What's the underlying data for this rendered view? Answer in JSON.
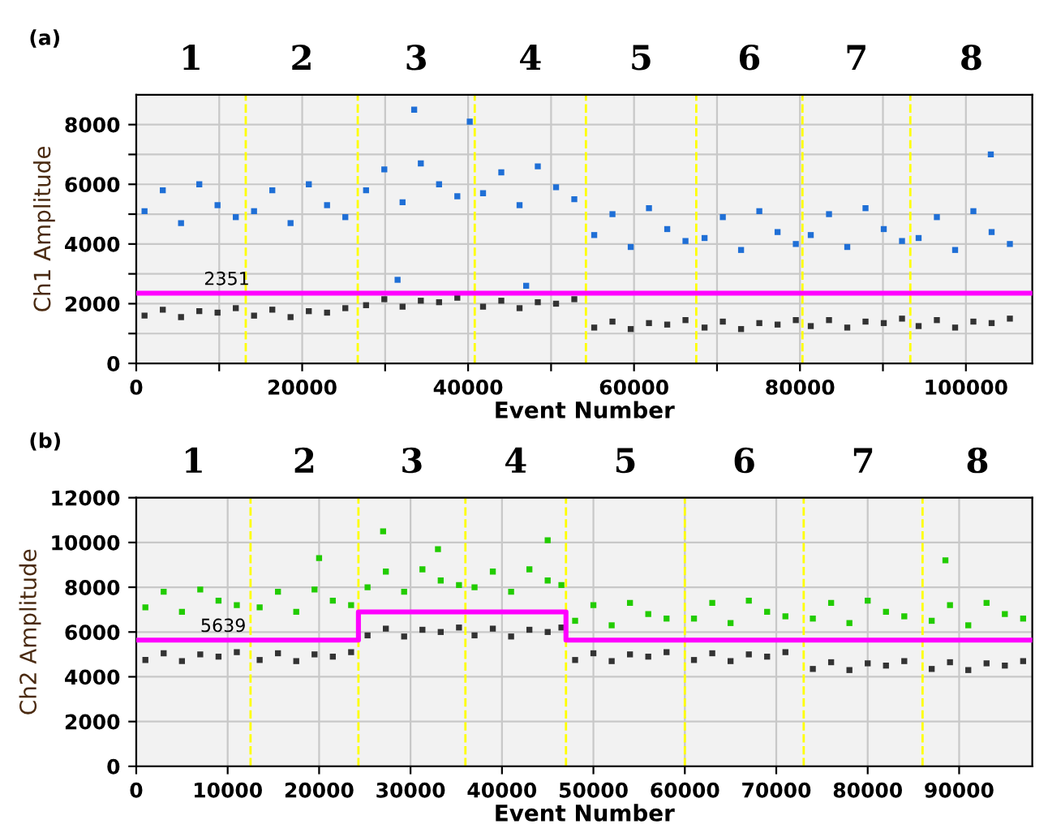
{
  "chart_data": [
    {
      "type": "scatter",
      "title": "(a)",
      "xlabel": "Event Number",
      "ylabel": "Ch1 Amplitude",
      "xlim": [
        0,
        108000
      ],
      "ylim": [
        0,
        9000
      ],
      "xticks": [
        0,
        {
          "value": 10000,
          "label": null
        },
        20000,
        {
          "value": 30000,
          "label": null
        },
        40000,
        {
          "value": 50000,
          "label": null
        },
        60000,
        {
          "value": 70000,
          "label": null
        },
        80000,
        {
          "value": 90000,
          "label": null
        },
        100000
      ],
      "yticks": [
        0,
        {
          "value": 1000,
          "label": null
        },
        2000,
        {
          "value": 3000,
          "label": null
        },
        4000,
        {
          "value": 5000,
          "label": null
        },
        6000,
        {
          "value": 7000,
          "label": null
        },
        8000
      ],
      "annotations": [
        "1",
        "2",
        "3",
        "4",
        "5",
        "6",
        "7",
        "8"
      ],
      "grid": true,
      "marker": "square",
      "series": [
        {
          "color": "#1f6fd6",
          "x": [
            1000,
            3200,
            5400,
            7600,
            9800,
            12000,
            14200,
            16400,
            18600,
            20800,
            23000,
            25200,
            27700,
            29900,
            32100,
            34300,
            36500,
            38700,
            41800,
            44000,
            46200,
            48400,
            50600,
            52800,
            55200,
            57400,
            59600,
            61800,
            64000,
            66200,
            68500,
            70700,
            72900,
            75100,
            77300,
            79500,
            81300,
            83500,
            85700,
            87900,
            90100,
            92300,
            94300,
            96500,
            98700,
            100900,
            103100,
            105300,
            33500,
            40200,
            103000,
            31500,
            47000
          ],
          "values": [
            5100,
            5800,
            4700,
            6000,
            5300,
            4900,
            5100,
            5800,
            4700,
            6000,
            5300,
            4900,
            5800,
            6500,
            5400,
            6700,
            6000,
            5600,
            5700,
            6400,
            5300,
            6600,
            5900,
            5500,
            4300,
            5000,
            3900,
            5200,
            4500,
            4100,
            4200,
            4900,
            3800,
            5100,
            4400,
            4000,
            4300,
            5000,
            3900,
            5200,
            4500,
            4100,
            4200,
            4900,
            3800,
            5100,
            4400,
            4000,
            8500,
            8100,
            7000,
            2800,
            2600
          ]
        },
        {
          "color": "#333333",
          "x": [
            1000,
            3200,
            5400,
            7600,
            9800,
            12000,
            14200,
            16400,
            18600,
            20800,
            23000,
            25200,
            27700,
            29900,
            32100,
            34300,
            36500,
            38700,
            41800,
            44000,
            46200,
            48400,
            50600,
            52800,
            55200,
            57400,
            59600,
            61800,
            64000,
            66200,
            68500,
            70700,
            72900,
            75100,
            77300,
            79500,
            81300,
            83500,
            85700,
            87900,
            90100,
            92300,
            94300,
            96500,
            98700,
            100900,
            103100,
            105300
          ],
          "values": [
            1600,
            1800,
            1550,
            1750,
            1700,
            1850,
            1600,
            1800,
            1550,
            1750,
            1700,
            1850,
            1950,
            2150,
            1900,
            2100,
            2050,
            2200,
            1900,
            2100,
            1850,
            2050,
            2000,
            2150,
            1200,
            1400,
            1150,
            1350,
            1300,
            1450,
            1200,
            1400,
            1150,
            1350,
            1300,
            1450,
            1250,
            1450,
            1200,
            1400,
            1350,
            1500,
            1250,
            1450,
            1200,
            1400,
            1350,
            1500
          ]
        }
      ],
      "ref_lines": [
        {
          "axis": "y",
          "value": 2351,
          "label": "2351",
          "color": "#ff00ff",
          "line_style": "solid"
        },
        {
          "axis": "x",
          "value": 13200,
          "label": null,
          "color": "#ffff00",
          "line_style": "dashed"
        },
        {
          "axis": "x",
          "value": 26700,
          "label": null,
          "color": "#ffff00",
          "line_style": "dashed"
        },
        {
          "axis": "x",
          "value": 40800,
          "label": null,
          "color": "#ffff00",
          "line_style": "dashed"
        },
        {
          "axis": "x",
          "value": 54200,
          "label": null,
          "color": "#ffff00",
          "line_style": "dashed"
        },
        {
          "axis": "x",
          "value": 67500,
          "label": null,
          "color": "#ffff00",
          "line_style": "dashed"
        },
        {
          "axis": "x",
          "value": 80300,
          "label": null,
          "color": "#ffff00",
          "line_style": "dashed"
        },
        {
          "axis": "x",
          "value": 93300,
          "label": null,
          "color": "#ffff00",
          "line_style": "dashed"
        }
      ]
    },
    {
      "type": "scatter",
      "title": "(b)",
      "xlabel": "Event Number",
      "ylabel": "Ch2 Amplitude",
      "xlim": [
        0,
        98000
      ],
      "ylim": [
        0,
        12000
      ],
      "xticks": [
        0,
        10000,
        20000,
        30000,
        40000,
        50000,
        60000,
        70000,
        80000,
        90000
      ],
      "yticks": [
        0,
        2000,
        4000,
        6000,
        8000,
        10000,
        12000
      ],
      "grid": true,
      "marker": "square",
      "series": [
        {
          "color": "#22cc00",
          "x": [
            1000,
            3000,
            5000,
            7000,
            9000,
            11000,
            13500,
            15500,
            17500,
            19500,
            21500,
            23500,
            25300,
            27300,
            29300,
            31300,
            33300,
            35300,
            37000,
            39000,
            41000,
            43000,
            45000,
            46500,
            48000,
            50000,
            52000,
            54000,
            56000,
            58000,
            61000,
            63000,
            65000,
            67000,
            69000,
            71000,
            74000,
            76000,
            78000,
            80000,
            82000,
            84000,
            87000,
            89000,
            91000,
            93000,
            95000,
            97000,
            27000,
            45000,
            88500,
            33000,
            20000
          ],
          "values": [
            7100,
            7800,
            6900,
            7900,
            7400,
            7200,
            7100,
            7800,
            6900,
            7900,
            7400,
            7200,
            8000,
            8700,
            7800,
            8800,
            8300,
            8100,
            8000,
            8700,
            7800,
            8800,
            8300,
            8100,
            6500,
            7200,
            6300,
            7300,
            6800,
            6600,
            6600,
            7300,
            6400,
            7400,
            6900,
            6700,
            6600,
            7300,
            6400,
            7400,
            6900,
            6700,
            6500,
            7200,
            6300,
            7300,
            6800,
            6600,
            10500,
            10100,
            9200,
            9700,
            9300
          ]
        },
        {
          "color": "#333333",
          "x": [
            1000,
            3000,
            5000,
            7000,
            9000,
            11000,
            13500,
            15500,
            17500,
            19500,
            21500,
            23500,
            25300,
            27300,
            29300,
            31300,
            33300,
            35300,
            37000,
            39000,
            41000,
            43000,
            45000,
            46500,
            48000,
            50000,
            52000,
            54000,
            56000,
            58000,
            61000,
            63000,
            65000,
            67000,
            69000,
            71000,
            74000,
            76000,
            78000,
            80000,
            82000,
            84000,
            87000,
            89000,
            91000,
            93000,
            95000,
            97000
          ],
          "values": [
            4750,
            5050,
            4700,
            5000,
            4900,
            5100,
            4750,
            5050,
            4700,
            5000,
            4900,
            5100,
            5850,
            6150,
            5800,
            6100,
            6000,
            6200,
            5850,
            6150,
            5800,
            6100,
            6000,
            6200,
            4750,
            5050,
            4700,
            5000,
            4900,
            5100,
            4750,
            5050,
            4700,
            5000,
            4900,
            5100,
            4350,
            4650,
            4300,
            4600,
            4500,
            4700,
            4350,
            4650,
            4300,
            4600,
            4500,
            4700
          ]
        },
        {
          "type": "line",
          "marker": "none",
          "color": "#ff00ff",
          "x": [
            0,
            24300,
            24300,
            47000,
            47000,
            98000
          ],
          "values": [
            5639,
            5639,
            6900,
            6900,
            5639,
            5639
          ]
        }
      ],
      "annotations": [
        "1",
        "2",
        "3",
        "4",
        "5",
        "6",
        "7",
        "8",
        {
          "text": "5639",
          "x": 7000,
          "y": 5639
        }
      ],
      "ref_lines": [
        {
          "axis": "x",
          "value": 12500,
          "label": null,
          "color": "#ffff00",
          "line_style": "dashed"
        },
        {
          "axis": "x",
          "value": 24300,
          "label": null,
          "color": "#ffff00",
          "line_style": "dashed"
        },
        {
          "axis": "x",
          "value": 36000,
          "label": null,
          "color": "#ffff00",
          "line_style": "dashed"
        },
        {
          "axis": "x",
          "value": 47000,
          "label": null,
          "color": "#ffff00",
          "line_style": "dashed"
        },
        {
          "axis": "x",
          "value": 60000,
          "label": null,
          "color": "#ffff00",
          "line_style": "dashed"
        },
        {
          "axis": "x",
          "value": 73000,
          "label": null,
          "color": "#ffff00",
          "line_style": "dashed"
        },
        {
          "axis": "x",
          "value": 86000,
          "label": null,
          "color": "#ffff00",
          "line_style": "dashed"
        }
      ]
    }
  ]
}
